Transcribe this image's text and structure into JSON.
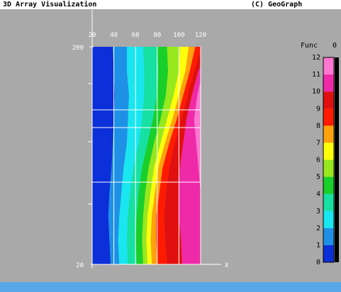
{
  "window": {
    "title": "3D Array Visualization",
    "copyright": "(C) GeoGraph"
  },
  "colors": {
    "background": "#a9a9a9",
    "status_bar": "#5aa7e8",
    "palette": [
      "#0b2fd8",
      "#1e90e6",
      "#19e6ef",
      "#16e0a2",
      "#19cf2a",
      "#98e81e",
      "#ffff0d",
      "#ffa20d",
      "#ff1b00",
      "#e01010",
      "#ee2aa8",
      "#ff77d0"
    ]
  },
  "chart_data": {
    "type": "heatmap",
    "title": "",
    "xlabel": "X",
    "ylabel": "",
    "x_ticks": [
      "20",
      "40",
      "60",
      "80",
      "100",
      "120"
    ],
    "y_ticks": [
      "200",
      "20"
    ],
    "xlim": [
      20,
      120
    ],
    "ylim": [
      20,
      200
    ],
    "grid": true,
    "legend": {
      "title": "Func",
      "value": "0",
      "levels": [
        "0",
        "1",
        "2",
        "3",
        "4",
        "5",
        "6",
        "7",
        "8",
        "9",
        "10",
        "11",
        "12"
      ],
      "placement": "right"
    },
    "boundaries_y": [
      200,
      180,
      160,
      140,
      120,
      100,
      80,
      60,
      40,
      20
    ],
    "boundaries_x": [
      [
        39,
        52,
        67,
        80,
        89,
        101,
        109,
        115,
        121,
        127,
        132
      ],
      [
        40,
        52,
        68,
        81,
        90,
        100,
        106,
        110,
        114,
        118,
        122
      ],
      [
        41,
        54,
        68,
        80,
        88,
        95,
        100,
        104,
        108,
        112,
        117
      ],
      [
        40,
        53,
        66,
        76,
        83,
        89,
        94,
        98,
        102,
        107,
        114
      ],
      [
        39,
        52,
        63,
        71,
        77,
        83,
        87,
        91,
        96,
        104,
        116
      ],
      [
        38,
        49,
        58,
        66,
        72,
        77,
        81,
        85,
        91,
        101,
        118
      ],
      [
        36,
        47,
        55,
        63,
        69,
        74,
        78,
        82,
        88,
        100,
        120
      ],
      [
        35,
        45,
        53,
        61,
        67,
        71,
        75,
        79,
        86,
        100,
        122
      ],
      [
        36,
        44,
        52,
        60,
        66,
        70,
        74,
        79,
        87,
        102,
        124
      ],
      [
        37,
        45,
        53,
        61,
        67,
        71,
        75,
        80,
        89,
        103,
        126
      ]
    ]
  }
}
